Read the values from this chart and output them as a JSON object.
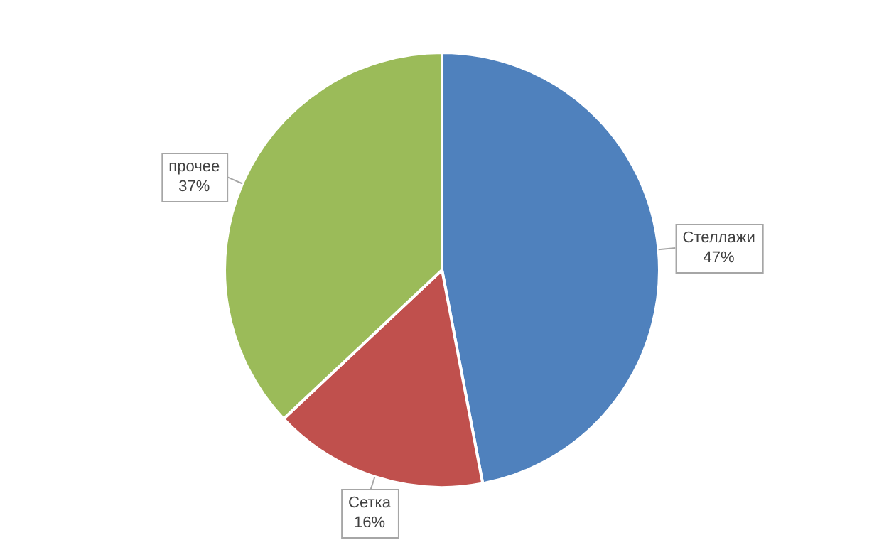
{
  "chart_data": {
    "type": "pie",
    "categories": [
      "Стеллажи",
      "Сетка",
      "прочее"
    ],
    "values": [
      47,
      16,
      37
    ],
    "colors": [
      "#4f81bd",
      "#c0504d",
      "#9bbb59"
    ],
    "value_labels": [
      "47%",
      "16%",
      "37%"
    ],
    "legend": false
  }
}
